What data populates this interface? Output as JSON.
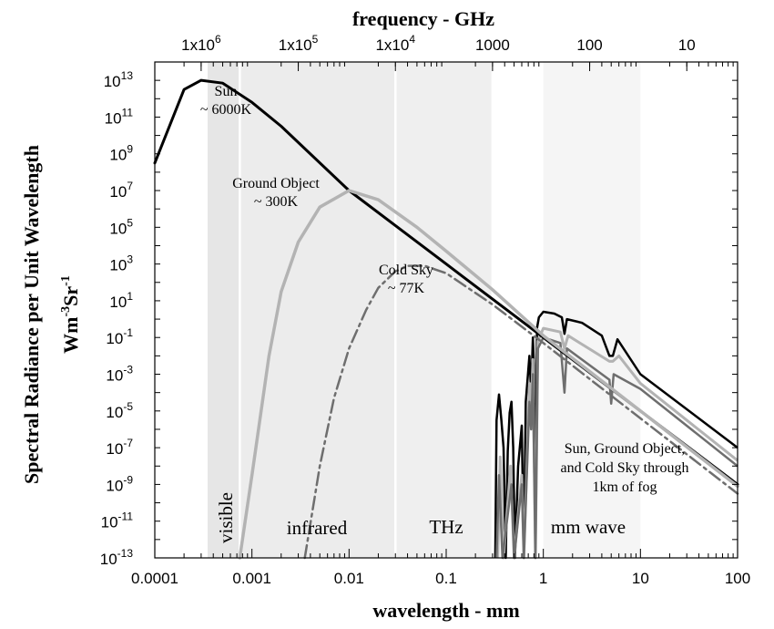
{
  "chart_data": {
    "type": "line",
    "top_title": "frequency - GHz",
    "xlabel": "wavelength - mm",
    "ylabel_line1": "Spectral Radiance per Unit Wavelength",
    "ylabel_line2": "Wm",
    "ylabel_sup1": "-3",
    "ylabel_mid": "Sr",
    "ylabel_sup2": "-1",
    "x_scale": "log",
    "y_scale": "log",
    "xlim": [
      0.0001,
      100
    ],
    "ylim_exponent": [
      -13,
      14
    ],
    "x_ticks": [
      {
        "value": 0.0001,
        "label": "0.0001"
      },
      {
        "value": 0.001,
        "label": "0.001"
      },
      {
        "value": 0.01,
        "label": "0.01"
      },
      {
        "value": 0.1,
        "label": "0.1"
      },
      {
        "value": 1,
        "label": "1"
      },
      {
        "value": 10,
        "label": "10"
      },
      {
        "value": 100,
        "label": "100"
      }
    ],
    "y_ticks": [
      {
        "exp": 13,
        "base": "10",
        "sup": "13"
      },
      {
        "exp": 11,
        "base": "10",
        "sup": "11"
      },
      {
        "exp": 9,
        "base": "10",
        "sup": "9"
      },
      {
        "exp": 7,
        "base": "10",
        "sup": "7"
      },
      {
        "exp": 5,
        "base": "10",
        "sup": "5"
      },
      {
        "exp": 3,
        "base": "10",
        "sup": "3"
      },
      {
        "exp": 1,
        "base": "10",
        "sup": "1"
      },
      {
        "exp": -1,
        "base": "10",
        "sup": "-1"
      },
      {
        "exp": -3,
        "base": "10",
        "sup": "-3"
      },
      {
        "exp": -5,
        "base": "10",
        "sup": "-5"
      },
      {
        "exp": -7,
        "base": "10",
        "sup": "-7"
      },
      {
        "exp": -9,
        "base": "10",
        "sup": "-9"
      },
      {
        "exp": -11,
        "base": "10",
        "sup": "-11"
      },
      {
        "exp": -13,
        "base": "10",
        "sup": "-13"
      }
    ],
    "freq_ticks": [
      {
        "wavelength_mm": 0.0003,
        "base": "1x10",
        "sup": "6"
      },
      {
        "wavelength_mm": 0.003,
        "base": "1x10",
        "sup": "5"
      },
      {
        "wavelength_mm": 0.03,
        "base": "1x10",
        "sup": "4"
      },
      {
        "wavelength_mm": 0.3,
        "base": "1000",
        "sup": ""
      },
      {
        "wavelength_mm": 3,
        "base": "100",
        "sup": ""
      },
      {
        "wavelength_mm": 30,
        "base": "10",
        "sup": ""
      }
    ],
    "bands": [
      {
        "label": "visible",
        "from": 0.00035,
        "to": 0.00075,
        "shade": "#e6e6e6",
        "vertical": true
      },
      {
        "label": "infrared",
        "from": 0.00075,
        "to": 0.03,
        "shade": "#ececec",
        "vertical": false
      },
      {
        "label": "THz",
        "from": 0.03,
        "to": 0.3,
        "shade": "#efefef",
        "vertical": false
      },
      {
        "label": "mm wave",
        "from": 1,
        "to": 10,
        "shade": "#f5f5f5",
        "vertical": false
      }
    ],
    "series": [
      {
        "label_lines": [
          "Sun",
          "~ 6000K"
        ],
        "color": "#000000",
        "style": "solid",
        "width": 3,
        "points": [
          [
            0.0001,
            8.5
          ],
          [
            0.0002,
            12.5
          ],
          [
            0.0003,
            13.0
          ],
          [
            0.0005,
            12.85
          ],
          [
            0.001,
            11.8
          ],
          [
            0.002,
            10.5
          ],
          [
            0.01,
            7.0
          ],
          [
            0.1,
            3.0
          ],
          [
            1,
            -1.0
          ],
          [
            10,
            -5.0
          ],
          [
            100,
            -9.0
          ]
        ]
      },
      {
        "label_lines": [
          "Ground Object",
          "~ 300K"
        ],
        "color": "#b3b3b3",
        "style": "solid",
        "width": 3.5,
        "points": [
          [
            0.00075,
            -13
          ],
          [
            0.001,
            -8.5
          ],
          [
            0.0015,
            -2.0
          ],
          [
            0.002,
            1.5
          ],
          [
            0.003,
            4.2
          ],
          [
            0.005,
            6.1
          ],
          [
            0.01,
            7.0
          ],
          [
            0.02,
            6.5
          ],
          [
            0.05,
            5.0
          ],
          [
            0.1,
            3.7
          ],
          [
            0.3,
            1.6
          ],
          [
            1,
            -0.9
          ],
          [
            10,
            -5.0
          ],
          [
            100,
            -9.1
          ]
        ]
      },
      {
        "label_lines": [
          "Cold Sky",
          "~ 77K"
        ],
        "color": "#6e6e6e",
        "style": "dashdot",
        "width": 2.5,
        "points": [
          [
            0.0035,
            -13
          ],
          [
            0.005,
            -8.0
          ],
          [
            0.007,
            -4.3
          ],
          [
            0.01,
            -1.6
          ],
          [
            0.015,
            0.5
          ],
          [
            0.02,
            1.7
          ],
          [
            0.03,
            2.6
          ],
          [
            0.04,
            2.9
          ],
          [
            0.06,
            2.9
          ],
          [
            0.1,
            2.5
          ],
          [
            0.3,
            0.8
          ],
          [
            1,
            -1.3
          ],
          [
            10,
            -5.4
          ],
          [
            100,
            -9.5
          ]
        ]
      }
    ],
    "fog_series": [
      {
        "name": "Sun through fog",
        "color": "#000000",
        "width": 2.5,
        "points": [
          [
            0.32,
            -13
          ],
          [
            0.33,
            -5.5
          ],
          [
            0.35,
            -4.1
          ],
          [
            0.37,
            -5.5
          ],
          [
            0.39,
            -7.0
          ],
          [
            0.41,
            -13
          ],
          [
            0.43,
            -7.2
          ],
          [
            0.45,
            -5.1
          ],
          [
            0.47,
            -4.5
          ],
          [
            0.49,
            -7.0
          ],
          [
            0.51,
            -13
          ],
          [
            0.55,
            -8.0
          ],
          [
            0.6,
            -5.8
          ],
          [
            0.63,
            -13
          ],
          [
            0.66,
            -4.5
          ],
          [
            0.72,
            -2.0
          ],
          [
            0.75,
            -4.0
          ],
          [
            0.78,
            -1.0
          ],
          [
            0.8,
            -2.5
          ],
          [
            0.83,
            -13
          ],
          [
            0.86,
            -0.5
          ],
          [
            0.9,
            0.1
          ],
          [
            1.0,
            0.4
          ],
          [
            1.3,
            0.3
          ],
          [
            1.55,
            0.1
          ],
          [
            1.65,
            -0.8
          ],
          [
            1.75,
            0.0
          ],
          [
            2.5,
            -0.2
          ],
          [
            4.0,
            -0.9
          ],
          [
            4.8,
            -2.0
          ],
          [
            5.2,
            -2.0
          ],
          [
            5.8,
            -1.1
          ],
          [
            10,
            -3.0
          ],
          [
            100,
            -7.0
          ]
        ]
      },
      {
        "name": "Ground Object through fog",
        "color": "#b3b3b3",
        "width": 3,
        "points": [
          [
            0.34,
            -13
          ],
          [
            0.36,
            -7.5
          ],
          [
            0.39,
            -13
          ],
          [
            0.46,
            -8.0
          ],
          [
            0.5,
            -13
          ],
          [
            0.6,
            -8.5
          ],
          [
            0.63,
            -13
          ],
          [
            0.72,
            -3.5
          ],
          [
            0.75,
            -5.0
          ],
          [
            0.78,
            -2.2
          ],
          [
            0.83,
            -13
          ],
          [
            0.88,
            -1.2
          ],
          [
            1.0,
            -0.5
          ],
          [
            1.5,
            -0.7
          ],
          [
            1.65,
            -1.6
          ],
          [
            1.8,
            -0.9
          ],
          [
            4.8,
            -2.3
          ],
          [
            5.2,
            -2.3
          ],
          [
            6.0,
            -2.0
          ],
          [
            10,
            -3.5
          ],
          [
            100,
            -7.7
          ]
        ]
      },
      {
        "name": "Cold Sky through fog",
        "color": "#6e6e6e",
        "width": 2.5,
        "points": [
          [
            0.33,
            -13
          ],
          [
            0.35,
            -8.5
          ],
          [
            0.38,
            -13
          ],
          [
            0.47,
            -9.0
          ],
          [
            0.5,
            -13
          ],
          [
            0.6,
            -9.0
          ],
          [
            0.63,
            -13
          ],
          [
            0.72,
            -4.5
          ],
          [
            0.75,
            -6.0
          ],
          [
            0.78,
            -3.0
          ],
          [
            0.83,
            -13
          ],
          [
            0.88,
            -1.6
          ],
          [
            1.0,
            -1.0
          ],
          [
            1.5,
            -1.3
          ],
          [
            1.65,
            -4.0
          ],
          [
            1.75,
            -1.6
          ],
          [
            4.8,
            -3.3
          ],
          [
            5.0,
            -4.6
          ],
          [
            5.3,
            -3.0
          ],
          [
            10,
            -3.8
          ],
          [
            100,
            -8.0
          ]
        ]
      }
    ],
    "fog_annotation_lines": [
      "Sun, Ground Object,",
      "and Cold Sky through",
      "1km of fog"
    ]
  }
}
